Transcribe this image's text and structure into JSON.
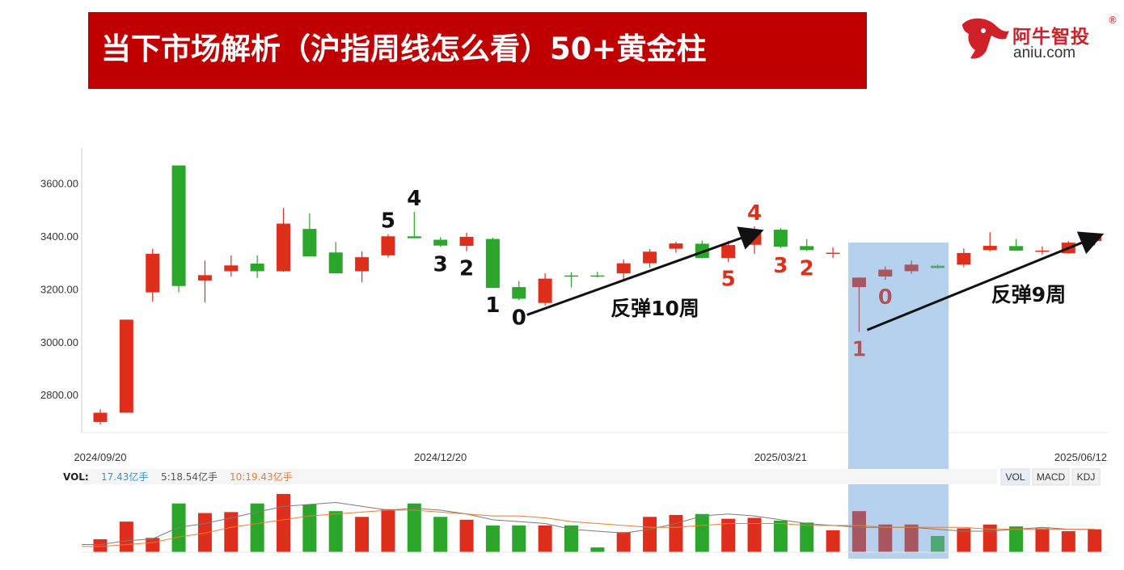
{
  "header": {
    "title": "当下市场解析（沪指周线怎么看）50+黄金柱"
  },
  "logo": {
    "cn": "阿牛智投",
    "en": "aniu.com",
    "reg": "®"
  },
  "colors": {
    "up": "#e02e1c",
    "down": "#2aa62a",
    "highlight_up": "#a8565f",
    "highlight_down": "#4fa874",
    "banner": "#c00000",
    "shade": "#a9c9ea"
  },
  "chart_data": {
    "type": "candlestick",
    "period": "weekly",
    "ylim": [
      2660,
      3730
    ],
    "yticks": [
      "3600.00",
      "3400.00",
      "3200.00",
      "3000.00",
      "2800.00"
    ],
    "ytick_values": [
      3600,
      3400,
      3200,
      3000,
      2800
    ],
    "xticks": [
      {
        "label": "2024/09/20",
        "index": 0
      },
      {
        "label": "2024/12/20",
        "index": 13
      },
      {
        "label": "2025/03/21",
        "index": 26
      },
      {
        "label": "2025/06/12",
        "index": 38
      }
    ],
    "candles": [
      {
        "o": 2700,
        "c": 2735,
        "h": 2748,
        "l": 2690
      },
      {
        "o": 2735,
        "c": 3087,
        "h": 3087,
        "l": 2735
      },
      {
        "o": 3190,
        "c": 3336,
        "h": 3355,
        "l": 3155
      },
      {
        "o": 3670,
        "c": 3214,
        "h": 3670,
        "l": 3190
      },
      {
        "o": 3235,
        "c": 3255,
        "h": 3310,
        "l": 3152
      },
      {
        "o": 3270,
        "c": 3292,
        "h": 3330,
        "l": 3250
      },
      {
        "o": 3299,
        "c": 3270,
        "h": 3330,
        "l": 3245
      },
      {
        "o": 3270,
        "c": 3450,
        "h": 3509,
        "l": 3268
      },
      {
        "o": 3430,
        "c": 3326,
        "h": 3489,
        "l": 3326
      },
      {
        "o": 3341,
        "c": 3262,
        "h": 3381,
        "l": 3262
      },
      {
        "o": 3270,
        "c": 3323,
        "h": 3345,
        "l": 3228
      },
      {
        "o": 3330,
        "c": 3402,
        "h": 3410,
        "l": 3322
      },
      {
        "o": 3402,
        "c": 3395,
        "h": 3495,
        "l": 3395
      },
      {
        "o": 3389,
        "c": 3367,
        "h": 3399,
        "l": 3362
      },
      {
        "o": 3366,
        "c": 3400,
        "h": 3416,
        "l": 3346
      },
      {
        "o": 3392,
        "c": 3207,
        "h": 3397,
        "l": 3207
      },
      {
        "o": 3210,
        "c": 3166,
        "h": 3233,
        "l": 3160
      },
      {
        "o": 3150,
        "c": 3242,
        "h": 3262,
        "l": 3140
      },
      {
        "o": 3254,
        "c": 3250,
        "h": 3266,
        "l": 3209
      },
      {
        "o": 3254,
        "c": 3252,
        "h": 3268,
        "l": 3247
      },
      {
        "o": 3262,
        "c": 3300,
        "h": 3314,
        "l": 3240
      },
      {
        "o": 3300,
        "c": 3344,
        "h": 3354,
        "l": 3283
      },
      {
        "o": 3355,
        "c": 3375,
        "h": 3382,
        "l": 3340
      },
      {
        "o": 3374,
        "c": 3320,
        "h": 3386,
        "l": 3318
      },
      {
        "o": 3320,
        "c": 3369,
        "h": 3385,
        "l": 3306
      },
      {
        "o": 3370,
        "c": 3419,
        "h": 3440,
        "l": 3336
      },
      {
        "o": 3427,
        "c": 3363,
        "h": 3434,
        "l": 3357
      },
      {
        "o": 3365,
        "c": 3350,
        "h": 3392,
        "l": 3346
      },
      {
        "o": 3340,
        "c": 3340,
        "h": 3360,
        "l": 3320
      },
      {
        "o": 3210,
        "c": 3246,
        "h": 3246,
        "l": 3040
      },
      {
        "o": 3250,
        "c": 3276,
        "h": 3288,
        "l": 3238
      },
      {
        "o": 3270,
        "c": 3295,
        "h": 3310,
        "l": 3260
      },
      {
        "o": 3291,
        "c": 3282,
        "h": 3297,
        "l": 3280
      },
      {
        "o": 3295,
        "c": 3339,
        "h": 3356,
        "l": 3285
      },
      {
        "o": 3350,
        "c": 3366,
        "h": 3418,
        "l": 3345
      },
      {
        "o": 3365,
        "c": 3348,
        "h": 3392,
        "l": 3347
      },
      {
        "o": 3345,
        "c": 3348,
        "h": 3364,
        "l": 3333
      },
      {
        "o": 3338,
        "c": 3378,
        "h": 3384,
        "l": 3336
      },
      {
        "o": 3384,
        "c": 3402,
        "h": 3410,
        "l": 3368
      }
    ],
    "highlight_range": [
      29,
      32
    ],
    "volume": {
      "legend": {
        "label": "VOL:",
        "v1": "17.43亿手",
        "v2": "5:18.54亿手",
        "v3": "10:19.43亿手"
      },
      "buttons": [
        "VOL",
        "MACD",
        "KDJ"
      ],
      "max": 33,
      "values": [
        6.8,
        16,
        7.5,
        25.5,
        20.5,
        21,
        25.5,
        30.5,
        25,
        21.5,
        18.5,
        22.5,
        25.5,
        18.5,
        17,
        14,
        14,
        14,
        14,
        2.5,
        10.5,
        18.5,
        19.5,
        20,
        17.5,
        18,
        16.5,
        15.5,
        11.5,
        21.5,
        14.5,
        14.5,
        8.5,
        12.5,
        14.5,
        13.5,
        12.5,
        11,
        12
      ],
      "ma5": [
        4,
        6,
        7,
        13,
        15,
        18,
        21,
        24,
        25,
        26,
        24,
        22,
        23,
        22,
        20,
        17,
        16,
        15,
        12,
        11,
        10,
        12,
        15,
        19,
        20,
        19,
        17,
        15,
        14,
        13,
        13,
        13,
        12,
        11,
        11,
        12,
        13,
        12,
        12
      ],
      "ma10": [
        3,
        4,
        5,
        8,
        10,
        13,
        15,
        17,
        19,
        20,
        21,
        22,
        22,
        21,
        20,
        19,
        19,
        18,
        16,
        15,
        14,
        13,
        13,
        14,
        15,
        15,
        15,
        14,
        14,
        14,
        13,
        13,
        13,
        13,
        12,
        12,
        12,
        12,
        12
      ]
    },
    "labels": [
      {
        "text": "5",
        "index": 11,
        "pos": "above",
        "color": "#111111"
      },
      {
        "text": "4",
        "index": 12,
        "pos": "above",
        "color": "#111111"
      },
      {
        "text": "3",
        "index": 13,
        "pos": "below",
        "color": "#111111"
      },
      {
        "text": "2",
        "index": 14,
        "pos": "below",
        "color": "#111111"
      },
      {
        "text": "1",
        "index": 15,
        "pos": "below",
        "color": "#111111"
      },
      {
        "text": "0",
        "index": 16,
        "pos": "below",
        "color": "#111111"
      },
      {
        "text": "4",
        "index": 25,
        "pos": "above",
        "color": "#e02e1c"
      },
      {
        "text": "5",
        "index": 24,
        "pos": "below",
        "color": "#e02e1c"
      },
      {
        "text": "3",
        "index": 26,
        "pos": "below",
        "color": "#e02e1c"
      },
      {
        "text": "2",
        "index": 27,
        "pos": "below",
        "color": "#e02e1c"
      },
      {
        "text": "1",
        "index": 29,
        "pos": "below",
        "color": "#a8565f"
      },
      {
        "text": "0",
        "index": 30,
        "pos": "below",
        "color": "#a8565f"
      }
    ],
    "annotations": [
      {
        "text": "反弹10周",
        "from": {
          "index": 16,
          "value": 3105
        },
        "to": {
          "index": 25,
          "value": 3420
        }
      },
      {
        "text": "反弹9周",
        "from": {
          "index": 29,
          "value": 3048
        },
        "to": {
          "index": 38,
          "value": 3405
        }
      }
    ]
  }
}
